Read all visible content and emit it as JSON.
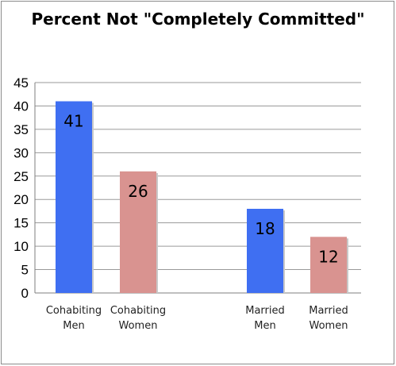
{
  "chart_data": {
    "type": "bar",
    "title": "Percent Not \"Completely Committed\"",
    "xlabel": "",
    "ylabel": "",
    "ylim": [
      0,
      45
    ],
    "yticks": [
      0,
      5,
      10,
      15,
      20,
      25,
      30,
      35,
      40,
      45
    ],
    "grid": true,
    "legend": "none",
    "categories": [
      {
        "lines": [
          "Cohabiting",
          "Men"
        ],
        "value": 41,
        "color": "#3f6ff2"
      },
      {
        "lines": [
          "Cohabiting",
          "Women"
        ],
        "value": 26,
        "color": "#d99390"
      },
      {
        "lines": [
          "Married",
          "Men"
        ],
        "value": 18,
        "color": "#3f6ff2"
      },
      {
        "lines": [
          "Married",
          "Women"
        ],
        "value": 12,
        "color": "#d99390"
      }
    ]
  }
}
